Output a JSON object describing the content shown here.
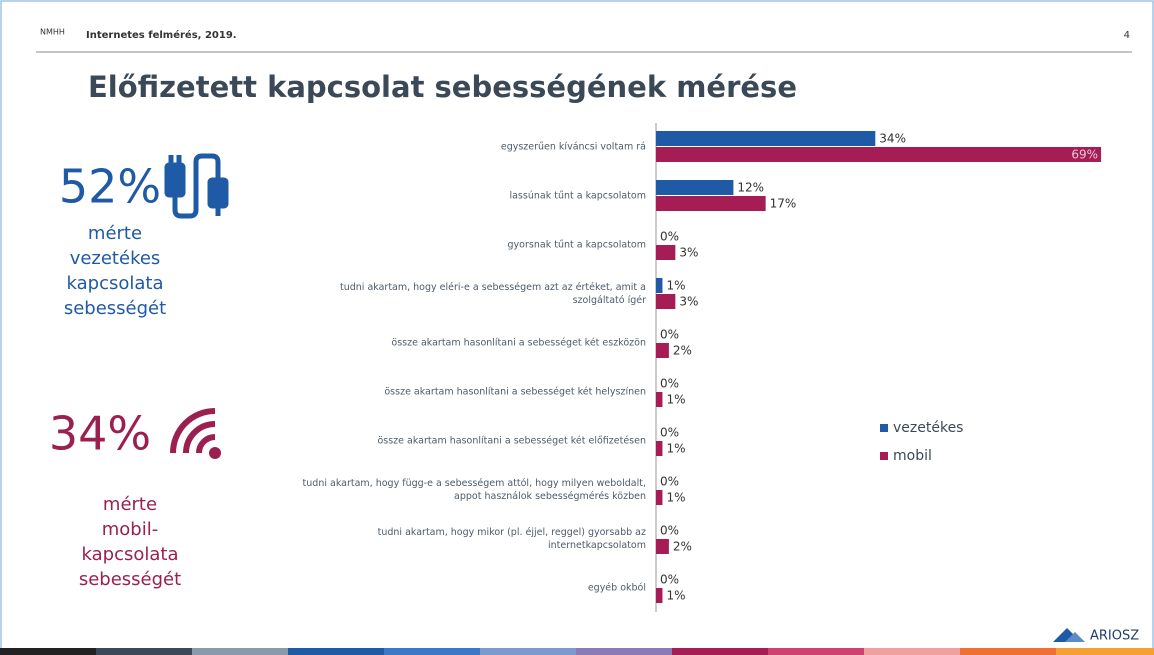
{
  "header": {
    "logo": "NMHH",
    "text": "Internetes felmérés, 2019.",
    "page": "4"
  },
  "title": "Előfizetett kapcsolat sebességének mérése",
  "highlights": [
    {
      "value": "52%",
      "lines": [
        "mérte",
        "vezetékes",
        "kapcsolata",
        "sebességét"
      ]
    },
    {
      "value": "34%",
      "lines": [
        "mérte",
        "mobil-",
        "kapcsolata",
        "sebességét"
      ]
    }
  ],
  "chart_data": {
    "type": "bar",
    "orientation": "horizontal",
    "categories": [
      "egyszerűen kíváncsi voltam rá",
      "lassúnak tűnt a kapcsolatom",
      "gyorsnak tűnt a kapcsolatom",
      "tudni akartam, hogy eléri-e a sebességem azt az értéket, amit a szolgáltató ígér",
      "össze akartam hasonlítani a sebességet két eszközön",
      "össze akartam hasonlítani a sebességet két helyszínen",
      "össze akartam hasonlítani a sebességet két előfizetésen",
      "tudni akartam, hogy függ-e a sebességem attól, hogy milyen weboldalt, appot használok sebességmérés közben",
      "tudni akartam, hogy mikor (pl. éjjel, reggel) gyorsabb az internetkapcsolatom",
      "egyéb okból"
    ],
    "series": [
      {
        "name": "vezetékes",
        "color": "#1f5aa6",
        "values": [
          34,
          12,
          0,
          1,
          0,
          0,
          0,
          0,
          0,
          0
        ],
        "value_labels": [
          "34%",
          "12%",
          "0%",
          "1%",
          "0%",
          "0%",
          "0%",
          "0%",
          "0%",
          "0%"
        ]
      },
      {
        "name": "mobil",
        "color": "#a61c55",
        "values": [
          69,
          17,
          3,
          3,
          2,
          1,
          1,
          1,
          2,
          1
        ],
        "value_labels": [
          "69%",
          "17%",
          "3%",
          "3%",
          "2%",
          "1%",
          "1%",
          "1%",
          "2%",
          "1%"
        ]
      }
    ],
    "legend": "right"
  },
  "footer": {
    "brand": "ARIOSZ"
  }
}
